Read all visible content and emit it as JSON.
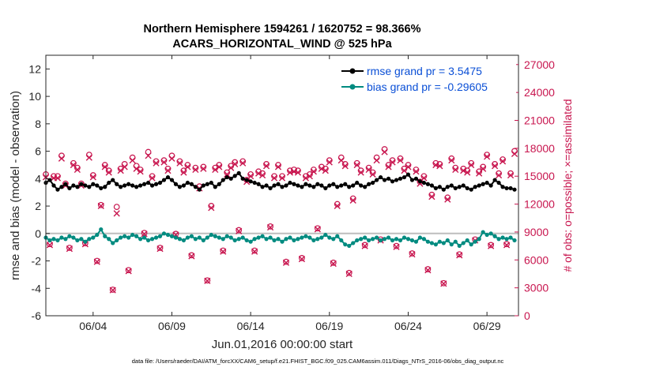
{
  "chart_data": {
    "type": "line",
    "title": "Northern Hemisphere 1594261 / 1620752 = 98.366%",
    "subtitle": "ACARS_HORIZONTAL_WIND @ 525 hPa",
    "xlabel": "Jun.01,2016 00:00:00 start",
    "ylabel": "rmse and bias (model - observation)",
    "y2label": "# of obs: o=possible; ×=assimilated",
    "footer": "data file: /Users/raeder/DAI/ATM_forcXX/CAM6_setup/f.e21.FHIST_BGC.f09_025.CAM6assim.011/Diags_NTrS_2016-06/obs_diag_output.nc",
    "xlim": [
      1,
      31
    ],
    "ylim": [
      -6,
      13
    ],
    "y2lim": [
      0,
      28000
    ],
    "xticks": [
      4,
      9,
      14,
      19,
      24,
      29
    ],
    "xtick_labels": [
      "06/04",
      "06/09",
      "06/14",
      "06/19",
      "06/24",
      "06/29"
    ],
    "yticks": [
      -6,
      -4,
      -2,
      0,
      2,
      4,
      6,
      8,
      10,
      12
    ],
    "y2ticks": [
      0,
      3000,
      6000,
      9000,
      12000,
      15000,
      18000,
      21000,
      24000,
      27000
    ],
    "y2tick_labels": [
      "0",
      "3000",
      "6000",
      "9000",
      "12000",
      "15000",
      "18000",
      "21000",
      "24000",
      "27000"
    ],
    "zero_line": 0,
    "legend_position": "top-right",
    "series": [
      {
        "name": "rmse grand pr = 3.5475",
        "color": "#000000",
        "x": [
          1.0,
          1.25,
          1.5,
          1.75,
          2.0,
          2.25,
          2.5,
          2.75,
          3.0,
          3.25,
          3.5,
          3.75,
          4.0,
          4.25,
          4.5,
          4.75,
          5.0,
          5.25,
          5.5,
          5.75,
          6.0,
          6.25,
          6.5,
          6.75,
          7.0,
          7.25,
          7.5,
          7.75,
          8.0,
          8.25,
          8.5,
          8.75,
          9.0,
          9.25,
          9.5,
          9.75,
          10.0,
          10.25,
          10.5,
          10.75,
          11.0,
          11.25,
          11.5,
          11.75,
          12.0,
          12.25,
          12.5,
          12.75,
          13.0,
          13.25,
          13.5,
          13.75,
          14.0,
          14.25,
          14.5,
          14.75,
          15.0,
          15.25,
          15.5,
          15.75,
          16.0,
          16.25,
          16.5,
          16.75,
          17.0,
          17.25,
          17.5,
          17.75,
          18.0,
          18.25,
          18.5,
          18.75,
          19.0,
          19.25,
          19.5,
          19.75,
          20.0,
          20.25,
          20.5,
          20.75,
          21.0,
          21.25,
          21.5,
          21.75,
          22.0,
          22.25,
          22.5,
          22.75,
          23.0,
          23.25,
          23.5,
          23.75,
          24.0,
          24.25,
          24.5,
          24.75,
          25.0,
          25.25,
          25.5,
          25.75,
          26.0,
          26.25,
          26.5,
          26.75,
          27.0,
          27.25,
          27.5,
          27.75,
          28.0,
          28.25,
          28.5,
          28.75,
          29.0,
          29.25,
          29.5,
          29.75,
          30.0,
          30.25,
          30.5,
          30.75
        ],
        "values": [
          3.7,
          3.9,
          3.5,
          3.2,
          3.4,
          3.6,
          3.3,
          3.5,
          3.4,
          3.6,
          3.5,
          3.4,
          3.6,
          3.5,
          3.3,
          3.4,
          3.7,
          3.9,
          3.6,
          3.4,
          3.5,
          3.6,
          3.5,
          3.4,
          3.5,
          3.6,
          3.7,
          3.5,
          3.6,
          3.7,
          3.9,
          4.1,
          3.9,
          3.6,
          3.4,
          3.5,
          3.7,
          3.6,
          3.4,
          3.2,
          3.5,
          3.6,
          3.7,
          3.4,
          3.6,
          3.9,
          4.1,
          4.0,
          4.2,
          4.4,
          4.0,
          3.9,
          3.8,
          3.7,
          3.6,
          3.4,
          3.5,
          3.3,
          3.5,
          3.6,
          3.4,
          3.5,
          3.7,
          3.6,
          3.5,
          3.4,
          3.6,
          3.5,
          3.4,
          3.6,
          3.5,
          3.3,
          3.5,
          3.6,
          3.4,
          3.5,
          3.6,
          3.4,
          3.5,
          3.7,
          3.5,
          3.4,
          3.6,
          3.7,
          3.9,
          4.1,
          3.9,
          4.0,
          3.8,
          3.9,
          4.0,
          4.1,
          4.3,
          3.9,
          4.0,
          3.8,
          3.7,
          3.6,
          3.5,
          3.3,
          3.4,
          3.2,
          3.4,
          3.5,
          3.3,
          3.4,
          3.5,
          3.3,
          3.2,
          3.4,
          3.5,
          3.6,
          3.7,
          3.5,
          3.9,
          3.7,
          3.4,
          3.3,
          3.3,
          3.2
        ]
      },
      {
        "name": "bias grand pr = -0.29605",
        "color": "#008b80",
        "x": [
          1.0,
          1.25,
          1.5,
          1.75,
          2.0,
          2.25,
          2.5,
          2.75,
          3.0,
          3.25,
          3.5,
          3.75,
          4.0,
          4.25,
          4.5,
          4.75,
          5.0,
          5.25,
          5.5,
          5.75,
          6.0,
          6.25,
          6.5,
          6.75,
          7.0,
          7.25,
          7.5,
          7.75,
          8.0,
          8.25,
          8.5,
          8.75,
          9.0,
          9.25,
          9.5,
          9.75,
          10.0,
          10.25,
          10.5,
          10.75,
          11.0,
          11.25,
          11.5,
          11.75,
          12.0,
          12.25,
          12.5,
          12.75,
          13.0,
          13.25,
          13.5,
          13.75,
          14.0,
          14.25,
          14.5,
          14.75,
          15.0,
          15.25,
          15.5,
          15.75,
          16.0,
          16.25,
          16.5,
          16.75,
          17.0,
          17.25,
          17.5,
          17.75,
          18.0,
          18.25,
          18.5,
          18.75,
          19.0,
          19.25,
          19.5,
          19.75,
          20.0,
          20.25,
          20.5,
          20.75,
          21.0,
          21.25,
          21.5,
          21.75,
          22.0,
          22.25,
          22.5,
          22.75,
          23.0,
          23.25,
          23.5,
          23.75,
          24.0,
          24.25,
          24.5,
          24.75,
          25.0,
          25.25,
          25.5,
          25.75,
          26.0,
          26.25,
          26.5,
          26.75,
          27.0,
          27.25,
          27.5,
          27.75,
          28.0,
          28.25,
          28.5,
          28.75,
          29.0,
          29.25,
          29.5,
          29.75,
          30.0,
          30.25,
          30.5,
          30.75
        ],
        "values": [
          -0.3,
          -0.5,
          -0.4,
          -0.5,
          -0.3,
          -0.4,
          -0.2,
          -0.3,
          -0.5,
          -0.4,
          -0.6,
          -0.4,
          -0.3,
          -0.1,
          0.3,
          -0.2,
          -0.4,
          -0.7,
          -0.5,
          -0.3,
          -0.2,
          -0.3,
          -0.1,
          -0.2,
          -0.4,
          -0.3,
          -0.5,
          -0.4,
          -0.3,
          -0.2,
          0.0,
          -0.1,
          -0.2,
          -0.3,
          -0.4,
          -0.5,
          -0.3,
          -0.2,
          -0.4,
          -0.3,
          -0.5,
          -0.3,
          -0.1,
          -0.2,
          -0.3,
          -0.4,
          -0.2,
          -0.3,
          -0.5,
          -0.4,
          -0.3,
          -0.5,
          -0.6,
          -0.4,
          -0.3,
          -0.2,
          -0.4,
          -0.3,
          -0.5,
          -0.4,
          -0.6,
          -0.4,
          -0.3,
          -0.5,
          -0.4,
          -0.3,
          -0.2,
          -0.3,
          -0.5,
          -0.4,
          -0.3,
          -0.1,
          -0.3,
          -0.4,
          -0.2,
          -0.5,
          -0.8,
          -0.9,
          -0.7,
          -0.5,
          -0.4,
          -0.3,
          -0.5,
          -0.4,
          -0.3,
          -0.5,
          -0.4,
          -0.3,
          -0.5,
          -0.4,
          -0.5,
          -0.3,
          -0.4,
          -0.5,
          -0.6,
          -0.3,
          -0.4,
          -0.6,
          -0.7,
          -0.8,
          -0.6,
          -0.7,
          -0.5,
          -0.8,
          -0.6,
          -0.9,
          -0.7,
          -0.5,
          -0.8,
          -0.6,
          -0.4,
          0.1,
          -0.1,
          0.0,
          -0.2,
          -0.4,
          -0.3,
          -0.4,
          -0.3,
          -0.5
        ]
      },
      {
        "name": "obs possible",
        "marker": "o",
        "color": "#c8164f",
        "x": [
          1.0,
          1.25,
          1.5,
          1.75,
          2.0,
          2.25,
          2.5,
          2.75,
          3.0,
          3.25,
          3.5,
          3.75,
          4.0,
          4.25,
          4.5,
          4.75,
          5.0,
          5.25,
          5.5,
          5.75,
          6.0,
          6.25,
          6.5,
          6.75,
          7.0,
          7.25,
          7.5,
          7.75,
          8.0,
          8.25,
          8.5,
          8.75,
          9.0,
          9.25,
          9.5,
          9.75,
          10.0,
          10.25,
          10.5,
          10.75,
          11.0,
          11.25,
          11.5,
          11.75,
          12.0,
          12.25,
          12.5,
          12.75,
          13.0,
          13.25,
          13.5,
          13.75,
          14.0,
          14.25,
          14.5,
          14.75,
          15.0,
          15.25,
          15.5,
          15.75,
          16.0,
          16.25,
          16.5,
          16.75,
          17.0,
          17.25,
          17.5,
          17.75,
          18.0,
          18.25,
          18.5,
          18.75,
          19.0,
          19.25,
          19.5,
          19.75,
          20.0,
          20.25,
          20.5,
          20.75,
          21.0,
          21.25,
          21.5,
          21.75,
          22.0,
          22.25,
          22.5,
          22.75,
          23.0,
          23.25,
          23.5,
          23.75,
          24.0,
          24.25,
          24.5,
          24.75,
          25.0,
          25.25,
          25.5,
          25.75,
          26.0,
          26.25,
          26.5,
          26.75,
          27.0,
          27.25,
          27.5,
          27.75,
          28.0,
          28.25,
          28.5,
          28.75,
          29.0,
          29.25,
          29.5,
          29.75,
          30.0,
          30.25,
          30.5,
          30.75
        ],
        "values": [
          15200,
          7700,
          15000,
          15000,
          17200,
          14200,
          7300,
          16400,
          15900,
          14200,
          7800,
          17300,
          15100,
          5900,
          11900,
          16200,
          15600,
          2800,
          11700,
          15800,
          16300,
          4900,
          17000,
          16100,
          15700,
          8900,
          17600,
          15000,
          16600,
          7300,
          16700,
          15800,
          17200,
          8800,
          16600,
          15600,
          16200,
          6500,
          15900,
          13900,
          16000,
          3800,
          11800,
          15900,
          16200,
          7000,
          15400,
          16100,
          16500,
          9200,
          16600,
          14600,
          15200,
          7000,
          15500,
          15300,
          16300,
          9600,
          15000,
          16200,
          15000,
          5800,
          15600,
          15700,
          15600,
          6200,
          15000,
          15200,
          15700,
          9400,
          16000,
          15800,
          16700,
          5700,
          12000,
          17000,
          16300,
          4600,
          12600,
          16400,
          15600,
          7600,
          15900,
          15400,
          17000,
          8200,
          17900,
          16200,
          16700,
          7500,
          16900,
          15800,
          16200,
          6700,
          15700,
          14400,
          15000,
          5000,
          13000,
          16400,
          16300,
          3500,
          12700,
          16900,
          15900,
          6600,
          15800,
          15600,
          16400,
          8200,
          15500,
          16000,
          17300,
          7600,
          16300,
          15300,
          16800,
          7700,
          15300,
          17700
        ]
      },
      {
        "name": "obs assimilated",
        "marker": "x",
        "color": "#c8164f",
        "x": [
          1.0,
          1.25,
          1.5,
          1.75,
          2.0,
          2.25,
          2.5,
          2.75,
          3.0,
          3.25,
          3.5,
          3.75,
          4.0,
          4.25,
          4.5,
          4.75,
          5.0,
          5.25,
          5.5,
          5.75,
          6.0,
          6.25,
          6.5,
          6.75,
          7.0,
          7.25,
          7.5,
          7.75,
          8.0,
          8.25,
          8.5,
          8.75,
          9.0,
          9.25,
          9.5,
          9.75,
          10.0,
          10.25,
          10.5,
          10.75,
          11.0,
          11.25,
          11.5,
          11.75,
          12.0,
          12.25,
          12.5,
          12.75,
          13.0,
          13.25,
          13.5,
          13.75,
          14.0,
          14.25,
          14.5,
          14.75,
          15.0,
          15.25,
          15.5,
          15.75,
          16.0,
          16.25,
          16.5,
          16.75,
          17.0,
          17.25,
          17.5,
          17.75,
          18.0,
          18.25,
          18.5,
          18.75,
          19.0,
          19.25,
          19.5,
          19.75,
          20.0,
          20.25,
          20.5,
          20.75,
          21.0,
          21.25,
          21.5,
          21.75,
          22.0,
          22.25,
          22.5,
          22.75,
          23.0,
          23.25,
          23.5,
          23.75,
          24.0,
          24.25,
          24.5,
          24.75,
          25.0,
          25.25,
          25.5,
          25.75,
          26.0,
          26.25,
          26.5,
          26.75,
          27.0,
          27.25,
          27.5,
          27.75,
          28.0,
          28.25,
          28.5,
          28.75,
          29.0,
          29.25,
          29.5,
          29.75,
          30.0,
          30.25,
          30.5,
          30.75
        ],
        "values": [
          14900,
          7600,
          14800,
          14800,
          16900,
          14000,
          7200,
          16200,
          15700,
          14000,
          7700,
          17000,
          14900,
          5800,
          11800,
          16000,
          15400,
          2750,
          11000,
          15600,
          16000,
          4800,
          16700,
          15800,
          15500,
          8800,
          17200,
          14800,
          16400,
          7200,
          16500,
          15600,
          16900,
          8700,
          16400,
          15400,
          16000,
          6400,
          15700,
          13700,
          15800,
          3750,
          11600,
          15700,
          16000,
          6900,
          15200,
          15900,
          16300,
          9100,
          16400,
          14400,
          15000,
          6900,
          15300,
          15100,
          16100,
          9500,
          14800,
          16000,
          14800,
          5700,
          15400,
          15500,
          15400,
          6100,
          14800,
          15000,
          15500,
          9300,
          15800,
          15600,
          16500,
          5600,
          11800,
          16700,
          16100,
          4500,
          12400,
          16200,
          15400,
          7500,
          15700,
          15200,
          16700,
          8100,
          17600,
          16000,
          16500,
          7400,
          16700,
          15600,
          16000,
          6600,
          15500,
          14200,
          14800,
          4900,
          12800,
          16200,
          16100,
          3450,
          12500,
          16700,
          15700,
          6500,
          15600,
          15400,
          16200,
          8100,
          15300,
          15800,
          17100,
          7500,
          16100,
          15100,
          16600,
          7600,
          15100,
          17400
        ]
      }
    ]
  }
}
